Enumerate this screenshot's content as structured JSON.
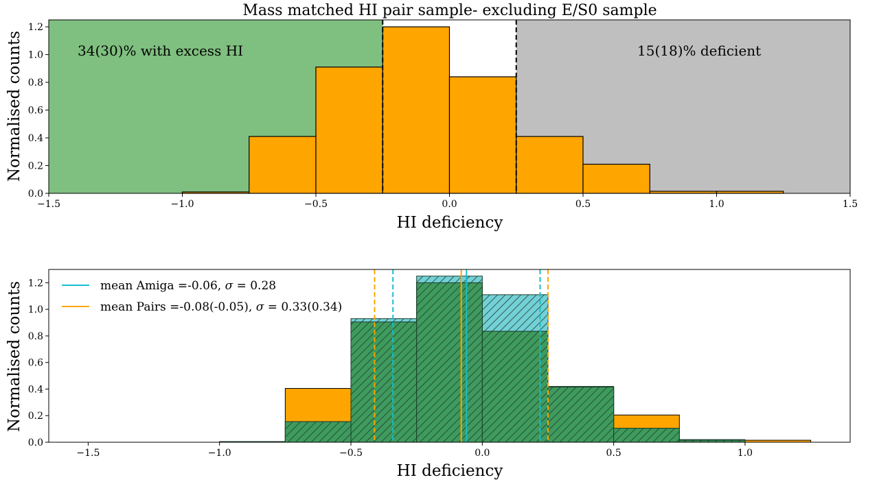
{
  "chart_data": [
    {
      "type": "bar",
      "title": "Mass matched HI pair sample- excluding E/S0 sample",
      "xlabel": "HI deficiency",
      "ylabel": "Normalised counts",
      "xlim": [
        -1.5,
        1.5
      ],
      "ylim": [
        0,
        1.25
      ],
      "xticks": [
        "−1.5",
        "−1.0",
        "−0.5",
        "0.0",
        "0.5",
        "1.0",
        "1.5"
      ],
      "xtick_values": [
        -1.5,
        -1.0,
        -0.5,
        0.0,
        0.5,
        1.0,
        1.5
      ],
      "yticks": [
        "0.0",
        "0.2",
        "0.4",
        "0.6",
        "0.8",
        "1.0",
        "1.2"
      ],
      "ytick_values": [
        0,
        0.2,
        0.4,
        0.6,
        0.8,
        1.0,
        1.2
      ],
      "grid": false,
      "bin_edges": [
        -1.0,
        -0.75,
        -0.5,
        -0.25,
        0.0,
        0.25,
        0.5,
        0.75,
        1.0,
        1.25
      ],
      "series": [
        {
          "name": "Pairs",
          "values": [
            0.01,
            0.41,
            0.91,
            1.2,
            0.84,
            0.41,
            0.21,
            0.015,
            0.015
          ],
          "color": "#ffa500"
        }
      ],
      "shaded_regions": [
        {
          "x_from": -1.5,
          "x_to": -0.25,
          "color": "#7fbf7f",
          "label": "34(30)% with excess HI"
        },
        {
          "x_from": 0.25,
          "x_to": 1.5,
          "color": "#bfbfbf",
          "label": "15(18)% deficient"
        }
      ],
      "vlines": [
        {
          "x": -0.25,
          "color": "#000000",
          "style": "dashed"
        },
        {
          "x": 0.25,
          "color": "#000000",
          "style": "dashed"
        }
      ]
    },
    {
      "type": "bar",
      "title": "",
      "xlabel": "HI deficiency",
      "ylabel": "Normalised counts",
      "xlim": [
        -1.65,
        1.4
      ],
      "ylim": [
        0,
        1.3
      ],
      "xticks": [
        "−1.5",
        "−1.0",
        "−0.5",
        "0.0",
        "0.5",
        "1.0"
      ],
      "xtick_values": [
        -1.5,
        -1.0,
        -0.5,
        0.0,
        0.5,
        1.0
      ],
      "yticks": [
        "0.0",
        "0.2",
        "0.4",
        "0.6",
        "0.8",
        "1.0",
        "1.2"
      ],
      "ytick_values": [
        0,
        0.2,
        0.4,
        0.6,
        0.8,
        1.0,
        1.2
      ],
      "grid": false,
      "legend_position": "top-left",
      "bin_edges": [
        -1.0,
        -0.75,
        -0.5,
        -0.25,
        0.0,
        0.25,
        0.5,
        0.75,
        1.0,
        1.25
      ],
      "series": [
        {
          "name": "Amiga",
          "values": [
            0.005,
            0.155,
            0.93,
            1.25,
            1.11,
            0.42,
            0.105,
            0.02,
            0.0
          ],
          "color": "#17becf",
          "fill": "#5ac8d0"
        },
        {
          "name": "Pairs",
          "values": [
            0.005,
            0.405,
            0.905,
            1.2,
            0.835,
            0.415,
            0.205,
            0.015,
            0.015
          ],
          "color": "#ffa500"
        }
      ],
      "overlap_fill": "#3f9a5e",
      "legend": [
        {
          "label": "mean Amiga =-0.06, ",
          "sigma": "σ",
          "rest": " = 0.28",
          "color": "#17becf"
        },
        {
          "label": "mean Pairs =-0.08(-0.05), ",
          "sigma": "σ",
          "rest": " = 0.33(0.34)",
          "color": "#ffa500"
        }
      ],
      "vlines": [
        {
          "x": -0.34,
          "color": "#17becf",
          "style": "dashed"
        },
        {
          "x": -0.06,
          "color": "#17becf",
          "style": "solid"
        },
        {
          "x": 0.22,
          "color": "#17becf",
          "style": "dashed"
        },
        {
          "x": -0.41,
          "color": "#ffa500",
          "style": "dashed"
        },
        {
          "x": -0.08,
          "color": "#ffa500",
          "style": "solid"
        },
        {
          "x": 0.25,
          "color": "#ffa500",
          "style": "dashed"
        }
      ]
    }
  ]
}
